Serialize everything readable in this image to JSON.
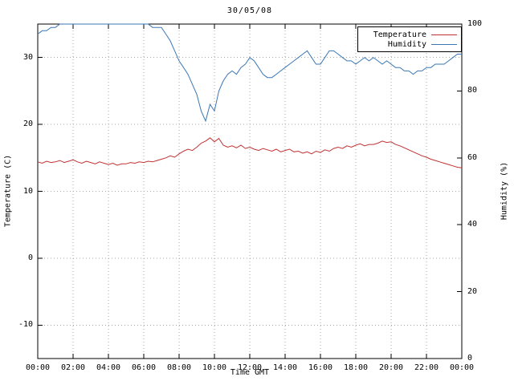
{
  "chart_data": {
    "type": "line",
    "title": "30/05/08",
    "xlabel": "Time GMT",
    "ylabel_left": "Temperature (C)",
    "ylabel_right": "Humidity (%)",
    "grid": true,
    "x_range": [
      0,
      24
    ],
    "x_ticks": [
      0,
      2,
      4,
      6,
      8,
      10,
      12,
      14,
      16,
      18,
      20,
      22,
      24
    ],
    "x_tick_labels": [
      "00:00",
      "02:00",
      "04:00",
      "06:00",
      "08:00",
      "10:00",
      "12:00",
      "14:00",
      "16:00",
      "18:00",
      "20:00",
      "22:00",
      "00:00"
    ],
    "y_left_range": [
      -15,
      35
    ],
    "y_left_ticks": [
      -10,
      0,
      10,
      20,
      30
    ],
    "y_right_range": [
      0,
      100
    ],
    "y_right_ticks": [
      0,
      20,
      40,
      60,
      80,
      100
    ],
    "legend": {
      "position": "top-right",
      "entries": [
        {
          "label": "Temperature",
          "color": "#c03232"
        },
        {
          "label": "Humidity",
          "color": "#3a77b5"
        }
      ]
    },
    "series": [
      {
        "name": "Temperature",
        "axis": "left",
        "color": "#c03232",
        "x_step_minutes": 15,
        "values": [
          14.4,
          14.2,
          14.5,
          14.3,
          14.4,
          14.6,
          14.3,
          14.5,
          14.7,
          14.4,
          14.2,
          14.5,
          14.3,
          14.1,
          14.4,
          14.2,
          14.0,
          14.2,
          13.9,
          14.1,
          14.1,
          14.3,
          14.2,
          14.4,
          14.3,
          14.5,
          14.4,
          14.6,
          14.8,
          15.0,
          15.3,
          15.1,
          15.6,
          16.0,
          16.3,
          16.1,
          16.6,
          17.2,
          17.5,
          18.0,
          17.4,
          17.9,
          16.9,
          16.6,
          16.8,
          16.5,
          16.9,
          16.4,
          16.6,
          16.3,
          16.1,
          16.4,
          16.2,
          16.0,
          16.3,
          15.9,
          16.1,
          16.3,
          15.9,
          16.0,
          15.7,
          15.9,
          15.6,
          16.0,
          15.8,
          16.2,
          16.0,
          16.4,
          16.6,
          16.4,
          16.8,
          16.6,
          16.9,
          17.1,
          16.8,
          17.0,
          17.0,
          17.2,
          17.5,
          17.3,
          17.4,
          17.0,
          16.8,
          16.5,
          16.2,
          15.9,
          15.6,
          15.3,
          15.1,
          14.8,
          14.6,
          14.4,
          14.2,
          14.0,
          13.8,
          13.6,
          13.5
        ]
      },
      {
        "name": "Humidity",
        "axis": "right",
        "color": "#3a77b5",
        "x_step_minutes": 15,
        "values": [
          97,
          98,
          98,
          99,
          99,
          100,
          100,
          100,
          100,
          100,
          100,
          100,
          100,
          100,
          100,
          100,
          100,
          100,
          100,
          100,
          100,
          100,
          100,
          100,
          100,
          100,
          99,
          99,
          99,
          97,
          95,
          92,
          89,
          87,
          85,
          82,
          79,
          74,
          71,
          76,
          74,
          80,
          83,
          85,
          86,
          85,
          87,
          88,
          90,
          89,
          87,
          85,
          84,
          84,
          85,
          86,
          87,
          88,
          89,
          90,
          91,
          92,
          90,
          88,
          88,
          90,
          92,
          92,
          91,
          90,
          89,
          89,
          88,
          89,
          90,
          89,
          90,
          89,
          88,
          89,
          88,
          87,
          87,
          86,
          86,
          85,
          86,
          86,
          87,
          87,
          88,
          88,
          88,
          89,
          90,
          91,
          91
        ]
      }
    ]
  }
}
